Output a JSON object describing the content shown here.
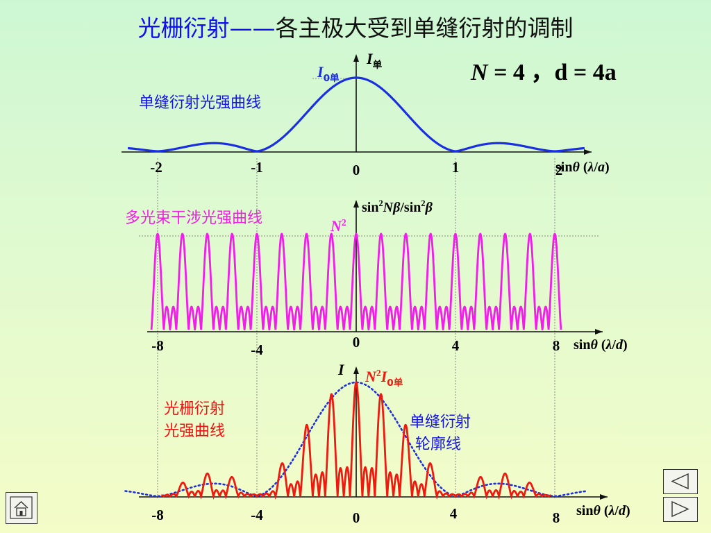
{
  "slide": {
    "title_main": "光栅衍射",
    "title_dash": "——",
    "title_rest": "各主极大受到单缝衍射的调制",
    "param_N": "N",
    "param_eq1": " = 4 ，",
    "param_d": "d = 4a"
  },
  "labels": {
    "single_slit_curve": "单缝衍射光强曲线",
    "multi_beam_curve": "多光束干涉光强曲线",
    "grating_curve_line1": "光栅衍射",
    "grating_curve_line2": "光强曲线",
    "envelope_line1": "单缝衍射",
    "envelope_line2": "轮廓线"
  },
  "nav": {
    "home_icon": "home-icon",
    "prev_icon": "triangle-left-icon",
    "next_icon": "triangle-right-icon"
  },
  "colors": {
    "single_slit": "#1a2fe0",
    "interference": "#f01ee8",
    "grating": "#ee1a10",
    "envelope": "#1e2fdc",
    "axis": "#111111",
    "guide": "#888888"
  },
  "chart_data": [
    {
      "type": "line",
      "name": "single-slit",
      "x_unit": "λ/a",
      "xlabel_parts": [
        "sin",
        "θ",
        "  (",
        "λ",
        "/",
        "a",
        ")"
      ],
      "ylabel_main": "I",
      "ylabel_sub": "单",
      "peak_label_main": "I",
      "peak_label_sub": "0单",
      "tick_values": [
        -2,
        -1,
        0,
        1,
        2
      ],
      "tick_labels": [
        "-2",
        "-1",
        "0",
        "1",
        "2"
      ],
      "xlim": [
        -2.3,
        2.3
      ],
      "I0": 1.0
    },
    {
      "type": "line",
      "name": "multi-beam-interference",
      "x_unit": "λ/d",
      "ylabel_parts": [
        "sin",
        "2",
        "N",
        "β",
        "/sin",
        "2",
        "β"
      ],
      "peak_label_main": "N",
      "peak_label_sup": "2",
      "N": 4,
      "tick_values": [
        -8,
        -4,
        0,
        4,
        8
      ],
      "tick_labels": [
        "-8",
        "-4",
        "0",
        "4",
        "8"
      ],
      "principal_maxima_orders": [
        -8,
        -7,
        -6,
        -5,
        -4,
        -3,
        -2,
        -1,
        0,
        1,
        2,
        3,
        4,
        5,
        6,
        7,
        8
      ],
      "xlabel_parts": [
        "sin",
        "θ",
        "  (",
        "λ",
        "/",
        "d",
        ")"
      ]
    },
    {
      "type": "line",
      "name": "grating-diffraction",
      "x_unit": "λ/d",
      "ylabel_main": "I",
      "peak_label_parts": [
        "N",
        "2",
        "I",
        "0单"
      ],
      "N": 4,
      "d_over_a": 4,
      "missing_orders": [
        -8,
        -4,
        4,
        8
      ],
      "tick_values": [
        -8,
        -4,
        0,
        4,
        8
      ],
      "tick_labels": [
        "-8",
        "-4",
        "0",
        "4",
        "8"
      ],
      "xlabel_parts": [
        "sin",
        "θ",
        "  (",
        "λ",
        "/",
        "d",
        ")"
      ]
    }
  ]
}
